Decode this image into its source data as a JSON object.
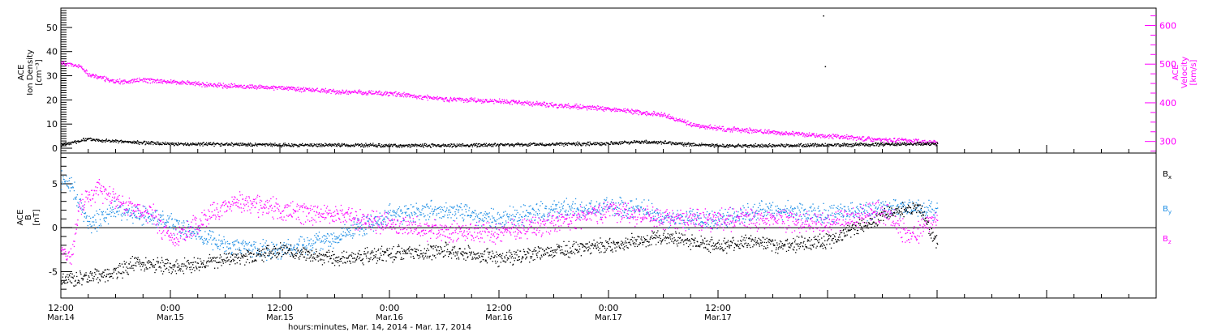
{
  "chart_data": [
    {
      "type": "scatter",
      "panel": "solar-wind-plasma",
      "left_axis": {
        "label_lines": [
          "ACE",
          "Ion Density",
          "[cm⁻³]"
        ],
        "ticks": [
          0,
          10,
          20,
          30,
          40,
          50
        ],
        "ylim": [
          -2,
          58
        ]
      },
      "right_axis": {
        "label_lines": [
          "ACE",
          "Velocity",
          "[km/s]"
        ],
        "ticks": [
          300,
          400,
          500,
          600
        ],
        "ylim": [
          270,
          645
        ]
      },
      "series": [
        {
          "axis": "left",
          "color": "#000000",
          "t": [
            0,
            3,
            6,
            9,
            12,
            18,
            24,
            30,
            36,
            42,
            48,
            54,
            60,
            63,
            66,
            70,
            72,
            78,
            84,
            90,
            96
          ],
          "values": [
            1.5,
            4,
            3,
            2.5,
            2,
            1.8,
            1.5,
            1.5,
            1.3,
            1.3,
            1.6,
            1.8,
            2.2,
            2.8,
            2.5,
            1.5,
            1.2,
            1.2,
            1.5,
            1.8,
            2
          ]
        },
        {
          "axis": "right",
          "color": "#ff00ff",
          "t": [
            0,
            2,
            3,
            6,
            9,
            12,
            18,
            24,
            30,
            36,
            42,
            48,
            54,
            60,
            66,
            69,
            72,
            78,
            84,
            90,
            96
          ],
          "values": [
            505,
            495,
            475,
            455,
            460,
            455,
            445,
            440,
            430,
            425,
            410,
            405,
            395,
            385,
            370,
            345,
            335,
            325,
            315,
            305,
            300
          ]
        }
      ],
      "outliers": [
        {
          "t": 83.5,
          "value": 55
        },
        {
          "t": 83.7,
          "value": 34
        }
      ]
    },
    {
      "type": "scatter",
      "panel": "magnetic-field",
      "left_axis": {
        "label_lines": [
          "ACE",
          "B",
          "[nT]"
        ],
        "ticks": [
          -5,
          0,
          5
        ],
        "ylim": [
          -8,
          8.5
        ]
      },
      "series": [
        {
          "name": "Bx",
          "color": "#000000",
          "label": {
            "main": "B",
            "sub": "x"
          },
          "t": [
            0,
            3,
            6,
            8,
            12,
            18,
            24,
            30,
            36,
            42,
            48,
            54,
            60,
            66,
            72,
            76,
            78,
            84,
            90,
            94,
            96
          ],
          "values": [
            -6,
            -5.5,
            -5,
            -4,
            -4.5,
            -3.5,
            -2.5,
            -3.5,
            -3,
            -2.5,
            -3.5,
            -2.5,
            -2,
            -1,
            -2,
            -1.5,
            -2,
            -1.5,
            1.5,
            2.5,
            -2
          ]
        },
        {
          "name": "By",
          "color": "#1f8fe5",
          "label": {
            "main": "B",
            "sub": "y"
          },
          "t": [
            0,
            1,
            3,
            6,
            10,
            18,
            24,
            30,
            36,
            42,
            48,
            54,
            60,
            64,
            66,
            72,
            78,
            84,
            90,
            96
          ],
          "values": [
            5.5,
            5,
            0.5,
            2,
            1.5,
            -2,
            -2.5,
            -1,
            1.5,
            2,
            1,
            2,
            2.5,
            2.2,
            1,
            1,
            2.2,
            1.5,
            2.2,
            2
          ]
        },
        {
          "name": "Bz",
          "color": "#ff00ff",
          "label": {
            "main": "B",
            "sub": "z"
          },
          "t": [
            0,
            1,
            2,
            4,
            6,
            8,
            10,
            12,
            18,
            20,
            24,
            30,
            36,
            42,
            48,
            54,
            60,
            66,
            72,
            78,
            84,
            90,
            93,
            96
          ],
          "values": [
            -2.5,
            -3.5,
            2.5,
            4.5,
            3,
            2,
            1.5,
            -1.5,
            2.5,
            3,
            2,
            1.5,
            0.5,
            -0.5,
            -0.5,
            0.5,
            2,
            1,
            1,
            1,
            0.5,
            2,
            -1,
            1.5
          ]
        }
      ],
      "zero_line": true
    }
  ],
  "time_axis": {
    "xlim": [
      0,
      120
    ],
    "ticks": [
      {
        "t": 0,
        "time": "12:00",
        "date": "Mar.14"
      },
      {
        "t": 12,
        "time": "0:00",
        "date": "Mar.15"
      },
      {
        "t": 24,
        "time": "12:00",
        "date": "Mar.15"
      },
      {
        "t": 36,
        "time": "0:00",
        "date": "Mar.16"
      },
      {
        "t": 48,
        "time": "12:00",
        "date": "Mar.16"
      },
      {
        "t": 60,
        "time": "0:00",
        "date": "Mar.17"
      },
      {
        "t": 72,
        "time": "12:00",
        "date": "Mar.17"
      }
    ],
    "xlabel": "hours:minutes, Mar. 14, 2014 - Mar. 17, 2014"
  }
}
